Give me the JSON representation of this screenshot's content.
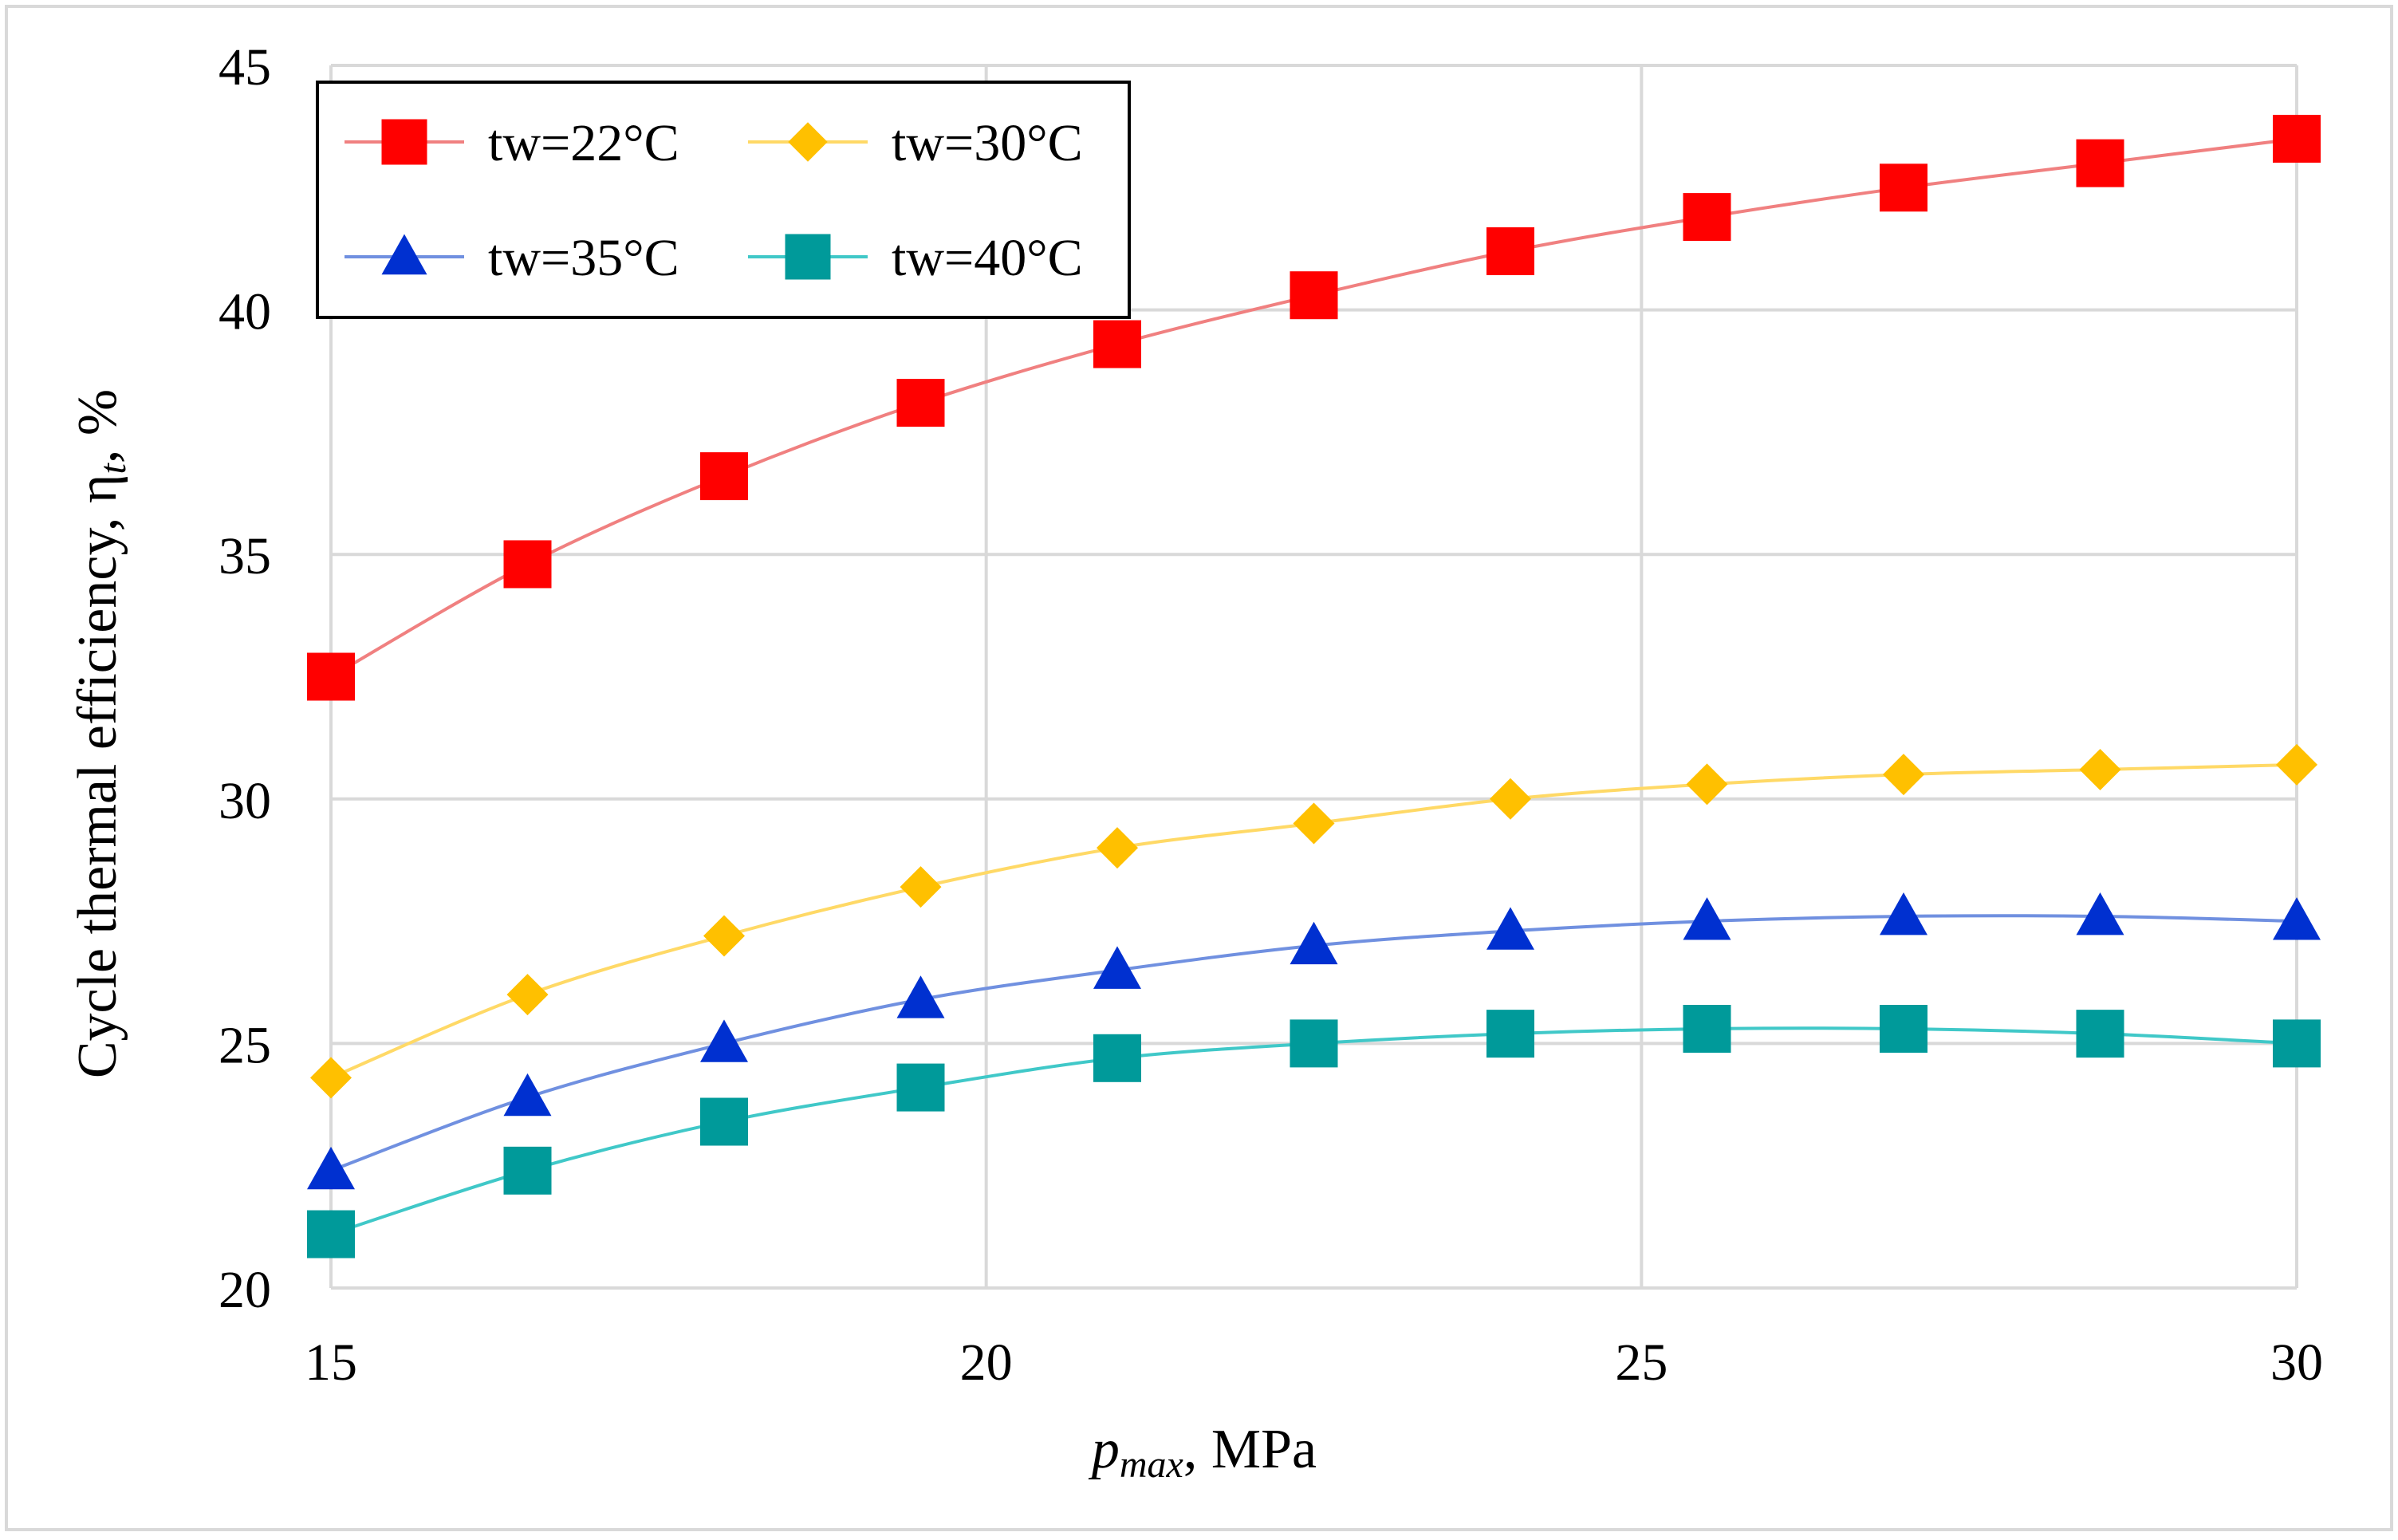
{
  "chart_data": {
    "type": "line",
    "xlabel": {
      "main": "p",
      "sub": "max",
      "rest": ", MPa"
    },
    "ylabel": {
      "main": "Cycle thermal efficiency, η",
      "sub": "t",
      "rest": ", %"
    },
    "xlim": [
      15,
      30
    ],
    "ylim": [
      20,
      45
    ],
    "xticks": [
      15,
      20,
      25,
      30
    ],
    "yticks": [
      20,
      25,
      30,
      35,
      40,
      45
    ],
    "grid": true,
    "legend": {
      "position": "top-left",
      "columns": 2
    },
    "x": [
      15,
      16.5,
      18,
      19.5,
      21,
      22.5,
      24,
      25.5,
      27,
      28.5,
      30
    ],
    "series": [
      {
        "name": "tw=22°C",
        "marker": "square",
        "marker_color": "#ff0000",
        "line_color": "#f08080",
        "values": [
          32.5,
          34.8,
          36.6,
          38.1,
          39.3,
          40.3,
          41.2,
          41.9,
          42.5,
          43.0,
          43.5
        ]
      },
      {
        "name": "tw=30°C",
        "marker": "diamond",
        "marker_color": "#ffc000",
        "line_color": "#ffd966",
        "values": [
          24.3,
          26.0,
          27.2,
          28.2,
          29.0,
          29.5,
          30.0,
          30.3,
          30.5,
          30.6,
          30.7
        ]
      },
      {
        "name": "tw=35°C",
        "marker": "triangle",
        "marker_color": "#0030d0",
        "line_color": "#7090e0",
        "values": [
          22.4,
          23.9,
          25.0,
          25.9,
          26.5,
          27.0,
          27.3,
          27.5,
          27.6,
          27.6,
          27.5
        ]
      },
      {
        "name": "tw=40°C",
        "marker": "square",
        "marker_color": "#009a9a",
        "line_color": "#40c8c8",
        "values": [
          21.1,
          22.4,
          23.4,
          24.1,
          24.7,
          25.0,
          25.2,
          25.3,
          25.3,
          25.2,
          25.0
        ]
      }
    ]
  }
}
